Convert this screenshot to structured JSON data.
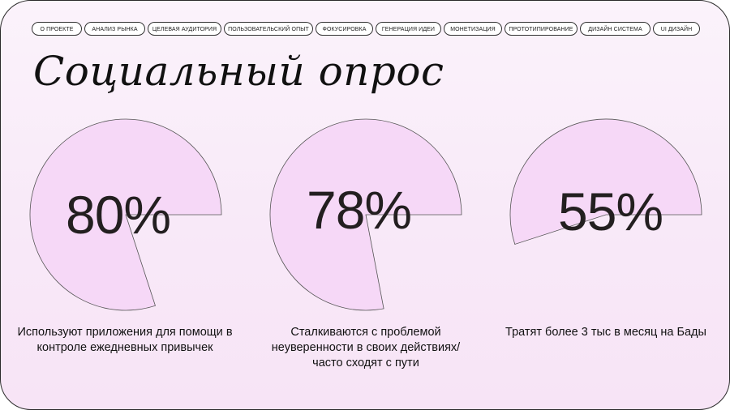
{
  "nav": {
    "items": [
      {
        "label": "О ПРОЕКТЕ"
      },
      {
        "label": "АНАЛИЗ РЫНКА"
      },
      {
        "label": "ЦЕЛЕВАЯ АУДИТОРИЯ"
      },
      {
        "label": "ПОЛЬЗОВАТЕЛЬСКИЙ ОПЫТ"
      },
      {
        "label": "ФОКУСИРОВКА"
      },
      {
        "label": "ГЕНЕРАЦИЯ ИДЕИ"
      },
      {
        "label": "МОНЕТИЗАЦИЯ"
      },
      {
        "label": "ПРОТОТИПИРОВАНИЕ"
      },
      {
        "label": "ДИЗАЙН СИСТЕМА"
      },
      {
        "label": "UI ДИЗАЙН"
      }
    ]
  },
  "title": "Социальный опрос",
  "stats": [
    {
      "value": "80%",
      "fraction": 0.8,
      "caption": "Используют приложения для помощи в контроле ежедневных привычек"
    },
    {
      "value": "78%",
      "fraction": 0.78,
      "caption": "Сталкиваются с проблемой неуверенности в своих действиях/часто сходят с пути"
    },
    {
      "value": "55%",
      "fraction": 0.55,
      "caption": "Тратят более 3 тыс в месяц на Бады"
    }
  ],
  "colors": {
    "pie_fill": "#f6d8f7",
    "pie_stroke": "#555555",
    "frame": "#2a2a2a"
  }
}
